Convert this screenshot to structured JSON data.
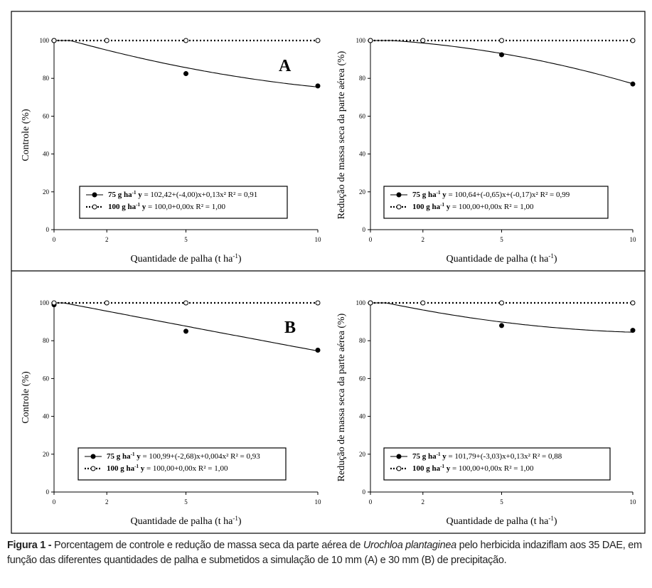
{
  "chart_data": [
    {
      "type": "scatter",
      "panel_label": "A",
      "ylabel": "Controle (%)",
      "xlabel": "Quantidade de palha (t ha",
      "xlabel_sup": "-1",
      "xlabel_end": ")",
      "xticks": [
        0,
        2,
        5,
        10
      ],
      "yticks": [
        0,
        20,
        40,
        60,
        80,
        100
      ],
      "xlim": [
        0,
        10
      ],
      "ylim": [
        0,
        100
      ],
      "series": [
        {
          "name": "75 g ha",
          "sup": "-1",
          "eq": "y = 102,42+(-4,00)x+0,13x² R² = 0,91",
          "marker": "filled",
          "line": "solid",
          "coef": [
            102.42,
            -4.0,
            0.13
          ],
          "x": [
            0,
            5,
            10
          ],
          "y": [
            100,
            82.5,
            76
          ]
        },
        {
          "name": "100 g ha",
          "sup": "-1",
          "eq": "y = 100,0+0,00x R² = 1,00",
          "marker": "open",
          "line": "dotted",
          "coef": [
            100,
            0,
            0
          ],
          "x": [
            0,
            2,
            5,
            10
          ],
          "y": [
            100,
            100,
            100,
            100
          ]
        }
      ]
    },
    {
      "type": "scatter",
      "panel_label": "",
      "ylabel": "Redução de massa seca da parte aérea (%)",
      "xlabel": "Quantidade de palha (t ha",
      "xlabel_sup": "-1",
      "xlabel_end": ")",
      "xticks": [
        0,
        2,
        5,
        10
      ],
      "yticks": [
        0,
        20,
        40,
        60,
        80,
        100
      ],
      "xlim": [
        0,
        10
      ],
      "ylim": [
        0,
        100
      ],
      "series": [
        {
          "name": "75 g ha",
          "sup": "-1",
          "eq": "y = 100,64+(-0,65)x+(-0,17)x² R² = 0,99",
          "marker": "filled",
          "line": "solid",
          "coef": [
            100.64,
            -0.65,
            -0.17
          ],
          "x": [
            0,
            5,
            10
          ],
          "y": [
            100,
            92.5,
            77
          ]
        },
        {
          "name": "100 g ha",
          "sup": "-1",
          "eq": "y = 100,00+0,00x R² = 1,00",
          "marker": "open",
          "line": "dotted",
          "coef": [
            100,
            0,
            0
          ],
          "x": [
            0,
            2,
            5,
            10
          ],
          "y": [
            100,
            100,
            100,
            100
          ]
        }
      ]
    },
    {
      "type": "scatter",
      "panel_label": "B",
      "ylabel": "Controle (%)",
      "xlabel": "Quantidade de palha (t ha",
      "xlabel_sup": "-1",
      "xlabel_end": ")",
      "xticks": [
        0,
        2,
        5,
        10
      ],
      "yticks": [
        0,
        20,
        40,
        60,
        80,
        100
      ],
      "xlim": [
        0,
        10
      ],
      "ylim": [
        0,
        100
      ],
      "series": [
        {
          "name": "75 g ha",
          "sup": "-1",
          "eq": "y = 100,99+(-2,68)x+0,004x² R² = 0,93",
          "marker": "filled",
          "line": "solid",
          "coef": [
            100.99,
            -2.68,
            0.004
          ],
          "x": [
            0,
            5,
            10
          ],
          "y": [
            99,
            85,
            75
          ]
        },
        {
          "name": "100 g ha",
          "sup": "-1",
          "eq": "y = 100,00+0,00x R² = 1,00",
          "marker": "open",
          "line": "dotted",
          "coef": [
            100,
            0,
            0
          ],
          "x": [
            0,
            2,
            5,
            10
          ],
          "y": [
            100,
            100,
            100,
            100
          ]
        }
      ]
    },
    {
      "type": "scatter",
      "panel_label": "",
      "ylabel": "Redução de massa seca da parte aérea (%)",
      "xlabel": "Quantidade de palha (t ha",
      "xlabel_sup": "-1",
      "xlabel_end": ")",
      "xticks": [
        0,
        2,
        5,
        10
      ],
      "yticks": [
        0,
        20,
        40,
        60,
        80,
        100
      ],
      "xlim": [
        0,
        10
      ],
      "ylim": [
        0,
        100
      ],
      "series": [
        {
          "name": "75 g ha",
          "sup": "-1",
          "eq": "y = 101,79+(-3,03)x+0,13x² R² = 0,88",
          "marker": "filled",
          "line": "solid",
          "coef": [
            101.79,
            -3.03,
            0.13
          ],
          "x": [
            0,
            5,
            10
          ],
          "y": [
            100,
            88,
            85.5
          ]
        },
        {
          "name": "100 g ha",
          "sup": "-1",
          "eq": "y = 100,00+0,00x R² = 1,00",
          "marker": "open",
          "line": "dotted",
          "coef": [
            100,
            0,
            0
          ],
          "x": [
            0,
            2,
            5,
            10
          ],
          "y": [
            100,
            100,
            100,
            100
          ]
        }
      ]
    }
  ],
  "caption": {
    "label": "Figura 1 -",
    "text1": "Porcentagem de controle e redução de massa seca da parte aérea de ",
    "species": "Urochloa plantaginea",
    "text2": " pelo herbicida indaziflam aos 35 DAE, em função das diferentes quantidades de palha e submetidos a simulação de 10 mm (A) e 30 mm (B) de precipitação."
  }
}
